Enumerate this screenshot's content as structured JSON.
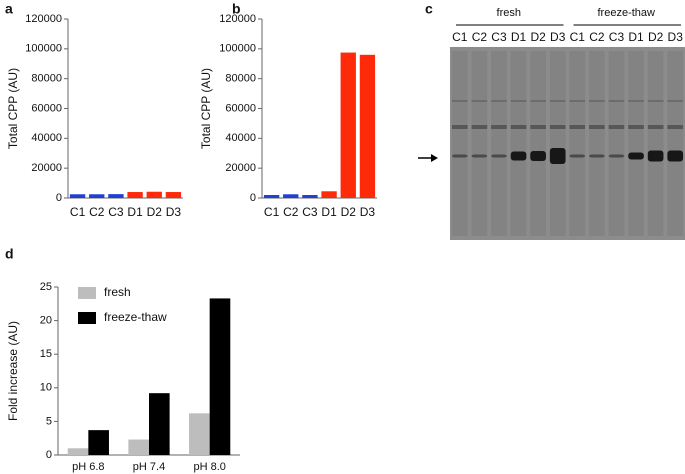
{
  "chart_data": [
    {
      "type": "bar",
      "panel_label": "a",
      "ylabel": "Total CPP (AU)",
      "categories": [
        "C1",
        "C2",
        "C3",
        "D1",
        "D2",
        "D3"
      ],
      "values": [
        2500,
        2500,
        2600,
        4000,
        4200,
        4000
      ],
      "colors": [
        "#1f3fd6",
        "#1f3fd6",
        "#1f3fd6",
        "#ff2a0a",
        "#ff2a0a",
        "#ff2a0a"
      ],
      "ylim": [
        0,
        120000
      ],
      "yticks": [
        0,
        20000,
        40000,
        60000,
        80000,
        100000,
        120000
      ]
    },
    {
      "type": "bar",
      "panel_label": "b",
      "ylabel": "Total CPP (AU)",
      "categories": [
        "C1",
        "C2",
        "C3",
        "D1",
        "D2",
        "D3"
      ],
      "values": [
        2000,
        2500,
        2000,
        4500,
        97500,
        96000
      ],
      "colors": [
        "#1f3fd6",
        "#1f3fd6",
        "#1f3fd6",
        "#ff2a0a",
        "#ff2a0a",
        "#ff2a0a"
      ],
      "ylim": [
        0,
        120000
      ],
      "yticks": [
        0,
        20000,
        40000,
        60000,
        80000,
        100000,
        120000
      ]
    },
    {
      "type": "gel",
      "panel_label": "c",
      "groups": [
        {
          "name": "fresh",
          "lanes": [
            "C1",
            "C2",
            "C3",
            "D1",
            "D2",
            "D3"
          ]
        },
        {
          "name": "freeze-thaw",
          "lanes": [
            "C1",
            "C2",
            "C3",
            "D1",
            "D2",
            "D3"
          ]
        }
      ]
    },
    {
      "type": "grouped_bar",
      "panel_label": "d",
      "ylabel": "Fold increase (AU)",
      "categories": [
        "pH 6.8",
        "pH 7.4",
        "pH 8.0"
      ],
      "series": [
        {
          "name": "fresh",
          "color": "#bdbdbd",
          "values": [
            1,
            2.3,
            6.2
          ]
        },
        {
          "name": "freeze-thaw",
          "color": "#000000",
          "values": [
            3.7,
            9.2,
            23.3
          ]
        }
      ],
      "ylim": [
        0,
        25
      ],
      "yticks": [
        0,
        5,
        10,
        15,
        20,
        25
      ],
      "legend": "upper left"
    }
  ]
}
